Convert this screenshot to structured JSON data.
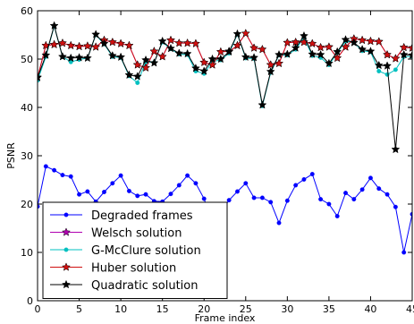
{
  "chart_data": {
    "type": "line",
    "xlabel": "Frame index",
    "ylabel": "PSNR",
    "xlim": [
      0,
      45
    ],
    "ylim": [
      0,
      60
    ],
    "xticks": [
      0,
      5,
      10,
      15,
      20,
      25,
      30,
      35,
      40,
      45
    ],
    "yticks": [
      0,
      10,
      20,
      30,
      40,
      50,
      60
    ],
    "grid": false,
    "legend_position": "lower-left",
    "x": [
      0,
      1,
      2,
      3,
      4,
      5,
      6,
      7,
      8,
      9,
      10,
      11,
      12,
      13,
      14,
      15,
      16,
      17,
      18,
      19,
      20,
      21,
      22,
      23,
      24,
      25,
      26,
      27,
      28,
      29,
      30,
      31,
      32,
      33,
      34,
      35,
      36,
      37,
      38,
      39,
      40,
      41,
      42,
      43,
      44,
      45
    ],
    "series": [
      {
        "name": "Degraded frames",
        "color": "#0000ff",
        "marker": "dot",
        "values": [
          19.5,
          27.8,
          27,
          26,
          25.7,
          22,
          22.6,
          20.5,
          22.5,
          24.3,
          25.9,
          22.7,
          21.7,
          22,
          20.6,
          20.5,
          22.1,
          23.9,
          25.9,
          24.3,
          21.1,
          16,
          18.3,
          20.8,
          22.6,
          24.3,
          21.3,
          21.3,
          20.4,
          16.1,
          20.7,
          23.9,
          25.1,
          26.2,
          21,
          20,
          17.5,
          22.3,
          21,
          23,
          25.4,
          23.2,
          22,
          19.4,
          10,
          17.9
        ]
      },
      {
        "name": "Welsch solution",
        "color": "#b000b0",
        "marker": "star",
        "values": [
          46.2,
          52.8,
          53,
          53.3,
          52.8,
          52.6,
          52.7,
          52.5,
          53.9,
          53.5,
          53.2,
          52.8,
          48.8,
          48.2,
          51.6,
          50.5,
          53.9,
          53.3,
          53.3,
          53.2,
          49.3,
          48.8,
          51.5,
          51.6,
          52.8,
          55.3,
          52.3,
          52,
          48.8,
          49.1,
          53.4,
          53.5,
          53.5,
          53.2,
          52.4,
          52.5,
          50.2,
          52.5,
          54.2,
          53.9,
          53.7,
          53.6,
          50.9,
          50.1,
          52.4,
          52.3
        ]
      },
      {
        "name": "G-McClure solution",
        "color": "#00c0c0",
        "marker": "dot",
        "values": [
          45.6,
          50.5,
          56.8,
          50.5,
          49.4,
          49.9,
          50.2,
          55,
          53.1,
          50.5,
          50.3,
          46.5,
          45.1,
          49.4,
          49.3,
          53.5,
          52.1,
          51,
          50.9,
          47.5,
          47,
          49.5,
          49.8,
          51.2,
          55.1,
          50.2,
          50.1,
          40.3,
          47.2,
          50.8,
          50.8,
          52,
          54.4,
          50.7,
          50.3,
          48.8,
          51.3,
          53.7,
          53.4,
          51.7,
          51.5,
          47.5,
          46.8,
          47.8,
          50.5,
          50.5
        ]
      },
      {
        "name": "Huber solution",
        "color": "#d01010",
        "marker": "star",
        "values": [
          46.2,
          52.8,
          53,
          53.3,
          52.8,
          52.6,
          52.7,
          52.5,
          53.9,
          53.5,
          53.2,
          52.8,
          48.8,
          48.2,
          51.6,
          50.5,
          53.9,
          53.3,
          53.3,
          53.2,
          49.3,
          48.8,
          51.5,
          51.6,
          52.8,
          55.3,
          52.3,
          52,
          48.8,
          49.1,
          53.4,
          53.5,
          53.5,
          53.2,
          52.4,
          52.5,
          50.2,
          52.5,
          54.2,
          53.9,
          53.7,
          53.6,
          50.9,
          50.1,
          52.4,
          52.3
        ]
      },
      {
        "name": "Quadratic solution",
        "color": "#000000",
        "marker": "star",
        "values": [
          46.2,
          50.8,
          56.9,
          50.5,
          50.2,
          50.3,
          50.2,
          55.1,
          53.2,
          50.7,
          50.4,
          46.7,
          46.4,
          49.8,
          49.2,
          53.7,
          52.2,
          51.2,
          51.1,
          48.1,
          47.5,
          50,
          50,
          51.5,
          55.2,
          50.4,
          50.3,
          40.5,
          47.4,
          50.9,
          51,
          52.3,
          54.8,
          51,
          50.9,
          49.1,
          51.5,
          54,
          53.4,
          52,
          51.6,
          48.7,
          48.6,
          31.3,
          50.9,
          50.8
        ]
      }
    ]
  }
}
